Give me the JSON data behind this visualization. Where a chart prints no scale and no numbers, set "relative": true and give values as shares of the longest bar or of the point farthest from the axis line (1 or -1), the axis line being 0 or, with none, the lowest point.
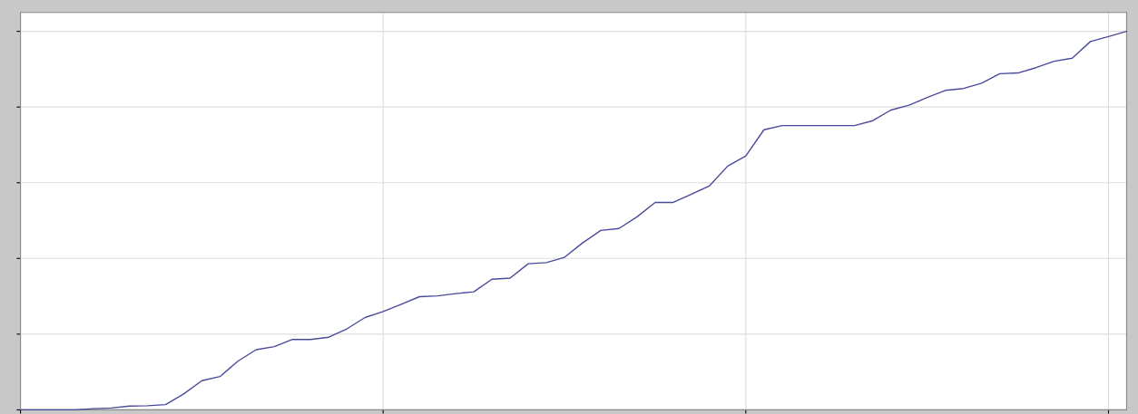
{
  "chart_data": {
    "type": "line",
    "relative": true,
    "grid": true,
    "categories": [
      null,
      null,
      null,
      null,
      null,
      null,
      null,
      null,
      null,
      null,
      null,
      null,
      null,
      null,
      null,
      null,
      null,
      null,
      null,
      null,
      null,
      null,
      null,
      null,
      null,
      null,
      null,
      null,
      null,
      null,
      null,
      null,
      null,
      null,
      null,
      null,
      null,
      null,
      null,
      null,
      null,
      null,
      null,
      null,
      null,
      null,
      null,
      null,
      null,
      null,
      null,
      null,
      null,
      null,
      null,
      null,
      null,
      null,
      null,
      null,
      null,
      null
    ],
    "series": [
      {
        "color": "#4a4a9c",
        "values": [
          0,
          0,
          0,
          0,
          0.003,
          0.005,
          0.01,
          0.011,
          0.014,
          0.042,
          0.077,
          0.088,
          0.129,
          0.159,
          0.167,
          0.186,
          0.186,
          0.192,
          0.214,
          0.244,
          0.26,
          0.279,
          0.299,
          0.301,
          0.307,
          0.312,
          0.345,
          0.348,
          0.386,
          0.389,
          0.403,
          0.441,
          0.474,
          0.479,
          0.51,
          0.548,
          0.548,
          0.57,
          0.592,
          0.644,
          0.671,
          0.74,
          0.751,
          0.751,
          0.751,
          0.751,
          0.751,
          0.764,
          0.792,
          0.805,
          0.825,
          0.844,
          0.849,
          0.863,
          0.888,
          0.89,
          0.904,
          0.921,
          0.929,
          0.973,
          0.986,
          1
        ]
      }
    ]
  }
}
